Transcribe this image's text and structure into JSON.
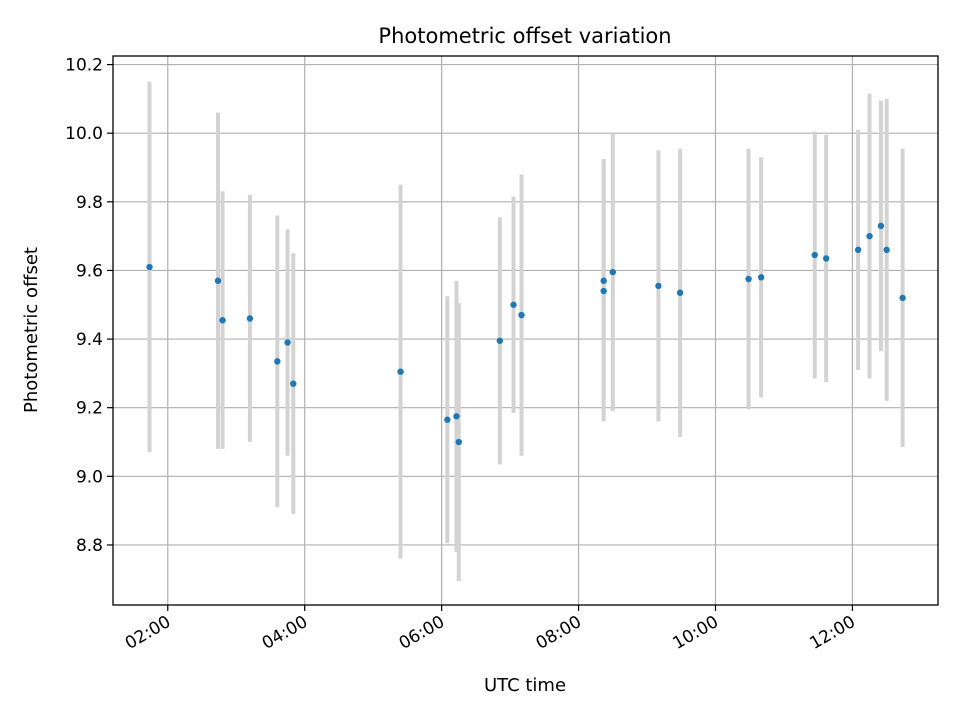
{
  "chart_data": {
    "type": "scatter",
    "title": "Photometric offset variation",
    "xlabel": "UTC time",
    "ylabel": "Photometric offset",
    "x_ticks": [
      "02:00",
      "04:00",
      "06:00",
      "08:00",
      "10:00",
      "12:00"
    ],
    "y_ticks": [
      "8.8",
      "9.0",
      "9.2",
      "9.4",
      "9.6",
      "9.8",
      "10.0",
      "10.2"
    ],
    "xlim": [
      "01:12",
      "13:15"
    ],
    "ylim": [
      8.625,
      10.225
    ],
    "grid": true,
    "legend": "none",
    "colors": {
      "points": "#1f77b4",
      "errorbars": "#d3d3d3",
      "grid": "#b0b0b0"
    },
    "points": [
      {
        "x": "01:44",
        "y": 9.61,
        "err": 0.54
      },
      {
        "x": "02:44",
        "y": 9.57,
        "err": 0.49
      },
      {
        "x": "02:48",
        "y": 9.455,
        "err": 0.375
      },
      {
        "x": "03:12",
        "y": 9.46,
        "err": 0.36
      },
      {
        "x": "03:36",
        "y": 9.335,
        "err": 0.425
      },
      {
        "x": "03:45",
        "y": 9.39,
        "err": 0.33
      },
      {
        "x": "03:50",
        "y": 9.27,
        "err": 0.38
      },
      {
        "x": "05:24",
        "y": 9.305,
        "err": 0.545
      },
      {
        "x": "06:05",
        "y": 9.165,
        "err": 0.36
      },
      {
        "x": "06:13",
        "y": 9.175,
        "err": 0.395
      },
      {
        "x": "06:15",
        "y": 9.1,
        "err": 0.405
      },
      {
        "x": "06:51",
        "y": 9.395,
        "err": 0.36
      },
      {
        "x": "07:03",
        "y": 9.5,
        "err": 0.315
      },
      {
        "x": "07:10",
        "y": 9.47,
        "err": 0.41
      },
      {
        "x": "08:22",
        "y": 9.57,
        "err": 0.355
      },
      {
        "x": "08:22",
        "y": 9.54,
        "err": 0.38
      },
      {
        "x": "08:30",
        "y": 9.595,
        "err": 0.405
      },
      {
        "x": "09:10",
        "y": 9.555,
        "err": 0.395
      },
      {
        "x": "09:29",
        "y": 9.535,
        "err": 0.42
      },
      {
        "x": "10:29",
        "y": 9.575,
        "err": 0.38
      },
      {
        "x": "10:40",
        "y": 9.58,
        "err": 0.35
      },
      {
        "x": "11:27",
        "y": 9.645,
        "err": 0.36
      },
      {
        "x": "11:37",
        "y": 9.635,
        "err": 0.36
      },
      {
        "x": "12:05",
        "y": 9.66,
        "err": 0.35
      },
      {
        "x": "12:15",
        "y": 9.7,
        "err": 0.415
      },
      {
        "x": "12:25",
        "y": 9.73,
        "err": 0.365
      },
      {
        "x": "12:30",
        "y": 9.66,
        "err": 0.44
      },
      {
        "x": "12:44",
        "y": 9.52,
        "err": 0.435
      }
    ]
  }
}
